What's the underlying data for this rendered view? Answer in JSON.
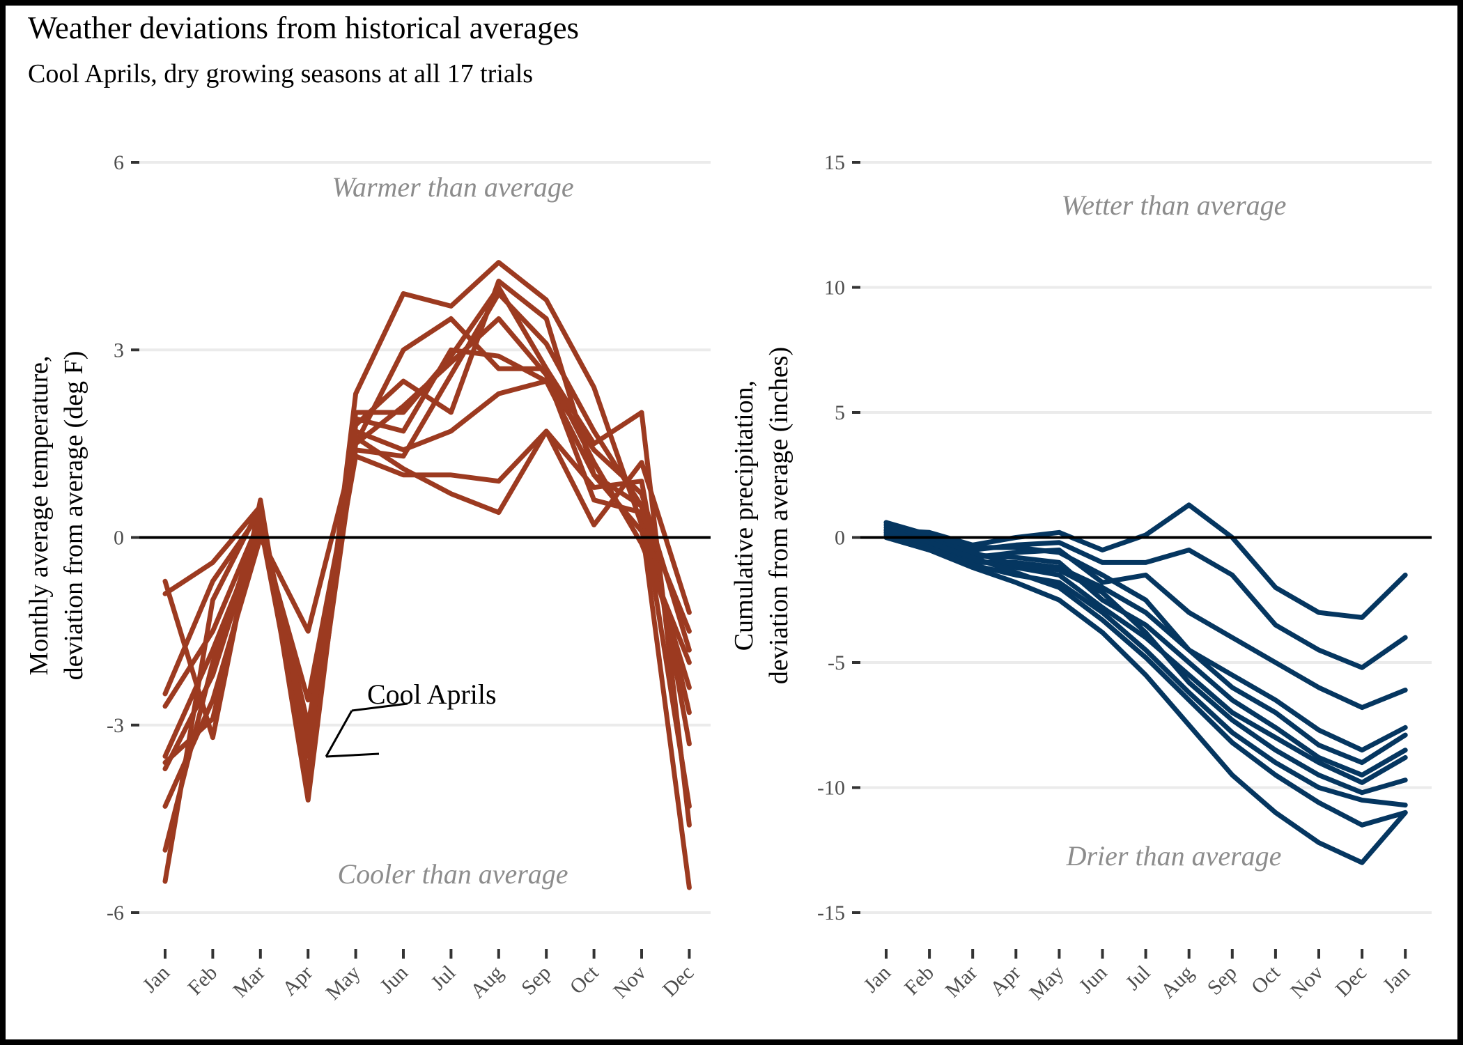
{
  "title": "Weather deviations from historical averages",
  "subtitle": "Cool Aprils, dry growing seasons at all 17 trials",
  "colors": {
    "temperature": "#9c3a20",
    "precipitation": "#053660",
    "grid": "#ebebeb",
    "zero": "#000000"
  },
  "chart_data": [
    {
      "type": "line",
      "name": "temperature",
      "ylabel_lines": [
        "Monthly average temperature,",
        "deviation from average (deg F)"
      ],
      "categories": [
        "Jan",
        "Feb",
        "Mar",
        "Apr",
        "May",
        "Jun",
        "Jul",
        "Aug",
        "Sep",
        "Oct",
        "Nov",
        "Dec"
      ],
      "yticks": [
        6,
        3,
        0,
        -3,
        -6
      ],
      "ylim": [
        -6.5,
        6.3
      ],
      "grid": true,
      "zero_line": true,
      "annotations": {
        "upper": "Warmer than average",
        "lower": "Cooler than average",
        "callout": "Cool Aprils"
      },
      "series": [
        {
          "values": [
            -0.7,
            -3.2,
            0.6,
            -4.0,
            2.3,
            3.9,
            3.7,
            4.4,
            3.8,
            2.4,
            0.2,
            -5.6
          ]
        },
        {
          "values": [
            -0.9,
            -0.4,
            0.5,
            -3.9,
            1.5,
            3.0,
            3.5,
            2.7,
            2.7,
            1.5,
            2.0,
            -4.6
          ]
        },
        {
          "values": [
            -2.5,
            -0.7,
            0.4,
            -3.5,
            1.8,
            2.5,
            2.0,
            4.1,
            3.5,
            1.0,
            0.5,
            -4.3
          ]
        },
        {
          "values": [
            -2.7,
            -1.5,
            0.3,
            -3.0,
            1.3,
            1.0,
            1.0,
            0.9,
            1.7,
            0.8,
            0.9,
            -3.3
          ]
        },
        {
          "values": [
            -3.5,
            -1.8,
            0.1,
            -2.6,
            1.4,
            1.3,
            2.6,
            3.9,
            3.1,
            1.7,
            0.5,
            -2.8
          ]
        },
        {
          "values": [
            -3.7,
            -2.2,
            0.2,
            -3.8,
            2.0,
            2.0,
            2.9,
            4.0,
            2.7,
            1.2,
            -0.1,
            -2.0
          ]
        },
        {
          "values": [
            -4.3,
            -2.6,
            0.0,
            -1.5,
            1.5,
            2.1,
            2.8,
            3.5,
            2.6,
            0.6,
            0.4,
            -1.5
          ]
        },
        {
          "values": [
            -5.0,
            -2.0,
            0.3,
            -3.2,
            1.6,
            1.1,
            0.7,
            0.4,
            1.7,
            0.2,
            1.2,
            -1.2
          ]
        },
        {
          "values": [
            -5.5,
            -1.0,
            0.5,
            -4.2,
            1.9,
            1.7,
            3.0,
            2.9,
            2.5,
            1.4,
            0.7,
            -1.8
          ]
        },
        {
          "values": [
            -3.6,
            -2.9,
            0.4,
            -3.4,
            1.7,
            1.4,
            1.7,
            2.3,
            2.5,
            1.0,
            0.1,
            -2.4
          ]
        }
      ]
    },
    {
      "type": "line",
      "name": "precipitation",
      "ylabel_lines": [
        "Cumulative precipitation,",
        "deviation from average (inches)"
      ],
      "categories": [
        "Jan",
        "Feb",
        "Mar",
        "Apr",
        "May",
        "Jun",
        "Jul",
        "Aug",
        "Sep",
        "Oct",
        "Nov",
        "Dec",
        "Jan"
      ],
      "yticks": [
        15,
        10,
        5,
        0,
        -5,
        -10,
        -15
      ],
      "ylim": [
        -16.2,
        15.3
      ],
      "grid": true,
      "zero_line": true,
      "annotations": {
        "upper": "Wetter than average",
        "lower": "Drier than average"
      },
      "series": [
        {
          "values": [
            0.3,
            0.2,
            -0.3,
            0.0,
            0.2,
            -0.5,
            0.1,
            1.3,
            0.0,
            -2.0,
            -3.0,
            -3.2,
            -1.5
          ]
        },
        {
          "values": [
            0.6,
            0.0,
            -0.5,
            -0.3,
            -0.2,
            -1.0,
            -1.0,
            -0.5,
            -1.5,
            -3.5,
            -4.5,
            -5.2,
            -4.0
          ]
        },
        {
          "values": [
            0.2,
            -0.2,
            -0.8,
            -0.6,
            -0.5,
            -1.8,
            -1.5,
            -3.0,
            -4.0,
            -5.0,
            -6.0,
            -6.8,
            -6.1
          ]
        },
        {
          "values": [
            0.0,
            -0.5,
            -1.0,
            -1.0,
            -1.2,
            -2.0,
            -3.0,
            -4.5,
            -6.0,
            -7.0,
            -8.3,
            -9.0,
            -7.9
          ]
        },
        {
          "values": [
            0.4,
            -0.1,
            -0.7,
            -0.8,
            -1.0,
            -2.5,
            -3.5,
            -5.0,
            -6.5,
            -7.6,
            -8.8,
            -9.5,
            -8.5
          ]
        },
        {
          "values": [
            0.1,
            -0.3,
            -0.9,
            -1.2,
            -1.5,
            -2.8,
            -4.0,
            -5.5,
            -7.0,
            -8.0,
            -9.0,
            -9.8,
            -8.8
          ]
        },
        {
          "values": [
            0.5,
            0.0,
            -0.6,
            -1.1,
            -1.3,
            -2.2,
            -3.8,
            -5.8,
            -7.3,
            -8.5,
            -9.5,
            -10.2,
            -9.7
          ]
        },
        {
          "values": [
            0.2,
            -0.4,
            -1.1,
            -1.5,
            -1.8,
            -3.0,
            -4.5,
            -6.2,
            -7.8,
            -9.0,
            -10.0,
            -10.5,
            -10.7
          ]
        },
        {
          "values": [
            0.3,
            -0.2,
            -0.8,
            -1.4,
            -2.0,
            -3.3,
            -4.8,
            -6.5,
            -8.2,
            -9.5,
            -10.6,
            -11.5,
            -11.0
          ]
        },
        {
          "values": [
            0.0,
            -0.5,
            -1.2,
            -1.8,
            -2.5,
            -3.8,
            -5.5,
            -7.5,
            -9.5,
            -11.0,
            -12.2,
            -13.0,
            -11.0
          ]
        },
        {
          "values": [
            0.6,
            0.1,
            -0.4,
            -0.4,
            -0.6,
            -1.5,
            -2.5,
            -4.5,
            -5.5,
            -6.5,
            -7.7,
            -8.5,
            -7.6
          ]
        }
      ]
    }
  ]
}
